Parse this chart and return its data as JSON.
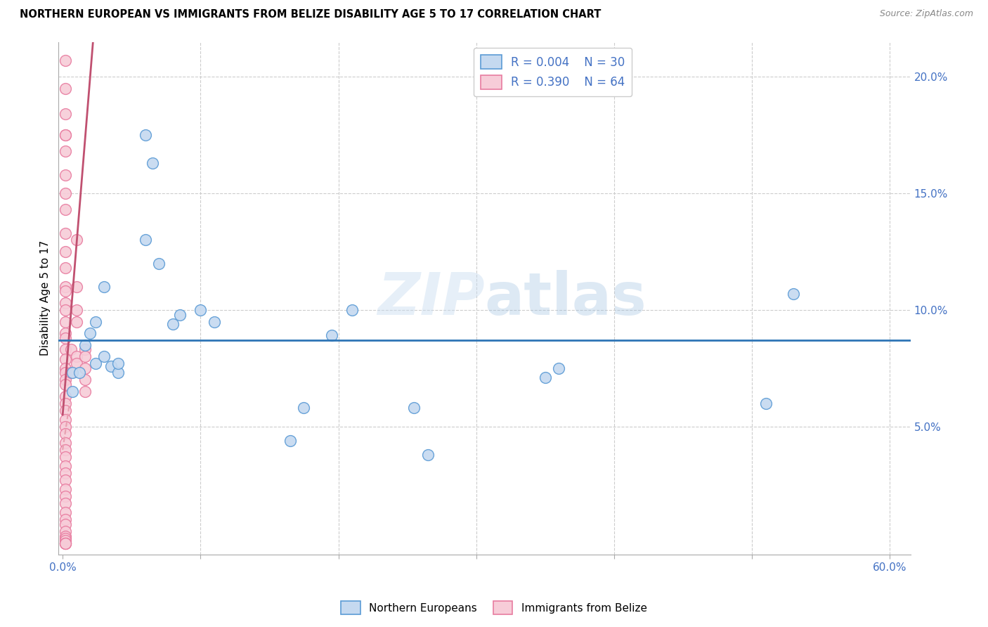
{
  "title": "NORTHERN EUROPEAN VS IMMIGRANTS FROM BELIZE DISABILITY AGE 5 TO 17 CORRELATION CHART",
  "source": "Source: ZipAtlas.com",
  "ylabel": "Disability Age 5 to 17",
  "xlabel": "",
  "xlim": [
    -0.003,
    0.615
  ],
  "ylim": [
    -0.005,
    0.215
  ],
  "xticks": [
    0.0,
    0.1,
    0.2,
    0.3,
    0.4,
    0.5,
    0.6
  ],
  "xticklabels": [
    "0.0%",
    "",
    "",
    "",
    "",
    "",
    "60.0%"
  ],
  "yticks_right": [
    0.0,
    0.05,
    0.1,
    0.15,
    0.2
  ],
  "yticklabels_right": [
    "",
    "5.0%",
    "10.0%",
    "15.0%",
    "20.0%"
  ],
  "blue_R": "0.004",
  "blue_N": "30",
  "pink_R": "0.390",
  "pink_N": "64",
  "blue_fill_color": "#c5d9f0",
  "pink_fill_color": "#f7ccd8",
  "blue_edge_color": "#5b9bd5",
  "pink_edge_color": "#e87ca0",
  "blue_line_color": "#2e75b6",
  "pink_line_color": "#c05070",
  "pink_dash_color": "#e8a0b0",
  "watermark": "ZIPatlas",
  "legend_label_blue": "Northern Europeans",
  "legend_label_pink": "Immigrants from Belize",
  "blue_hline_y": 0.087,
  "pink_trend_x": [
    0.0,
    0.022
  ],
  "pink_trend_y": [
    0.055,
    0.215
  ],
  "blue_scatter_x": [
    0.007,
    0.007,
    0.012,
    0.016,
    0.02,
    0.024,
    0.024,
    0.03,
    0.03,
    0.035,
    0.04,
    0.04,
    0.06,
    0.06,
    0.065,
    0.07,
    0.08,
    0.085,
    0.1,
    0.11,
    0.165,
    0.175,
    0.195,
    0.21,
    0.255,
    0.265,
    0.35,
    0.36,
    0.51,
    0.53
  ],
  "blue_scatter_y": [
    0.065,
    0.073,
    0.073,
    0.085,
    0.09,
    0.095,
    0.077,
    0.11,
    0.08,
    0.076,
    0.073,
    0.077,
    0.13,
    0.175,
    0.163,
    0.12,
    0.094,
    0.098,
    0.1,
    0.095,
    0.044,
    0.058,
    0.089,
    0.1,
    0.058,
    0.038,
    0.071,
    0.075,
    0.06,
    0.107
  ],
  "pink_scatter_x": [
    0.002,
    0.002,
    0.002,
    0.002,
    0.002,
    0.002,
    0.002,
    0.002,
    0.002,
    0.002,
    0.002,
    0.002,
    0.002,
    0.002,
    0.002,
    0.002,
    0.002,
    0.002,
    0.002,
    0.002,
    0.002,
    0.002,
    0.002,
    0.002,
    0.002,
    0.002,
    0.002,
    0.002,
    0.002,
    0.002,
    0.002,
    0.002,
    0.002,
    0.002,
    0.002,
    0.002,
    0.002,
    0.002,
    0.002,
    0.002,
    0.002,
    0.002,
    0.002,
    0.002,
    0.002,
    0.002,
    0.002,
    0.002,
    0.002,
    0.002,
    0.002,
    0.006,
    0.006,
    0.01,
    0.01,
    0.01,
    0.01,
    0.01,
    0.01,
    0.016,
    0.016,
    0.016,
    0.016,
    0.016
  ],
  "pink_scatter_y": [
    0.207,
    0.195,
    0.184,
    0.175,
    0.175,
    0.168,
    0.158,
    0.15,
    0.143,
    0.133,
    0.125,
    0.118,
    0.11,
    0.108,
    0.103,
    0.1,
    0.095,
    0.09,
    0.088,
    0.083,
    0.079,
    0.075,
    0.073,
    0.07,
    0.068,
    0.063,
    0.06,
    0.057,
    0.053,
    0.05,
    0.047,
    0.043,
    0.04,
    0.037,
    0.033,
    0.03,
    0.027,
    0.023,
    0.02,
    0.017,
    0.013,
    0.01,
    0.008,
    0.005,
    0.003,
    0.002,
    0.001,
    0.0,
    0.0,
    0.0,
    0.0,
    0.083,
    0.073,
    0.13,
    0.11,
    0.1,
    0.095,
    0.08,
    0.077,
    0.083,
    0.08,
    0.075,
    0.07,
    0.065
  ]
}
